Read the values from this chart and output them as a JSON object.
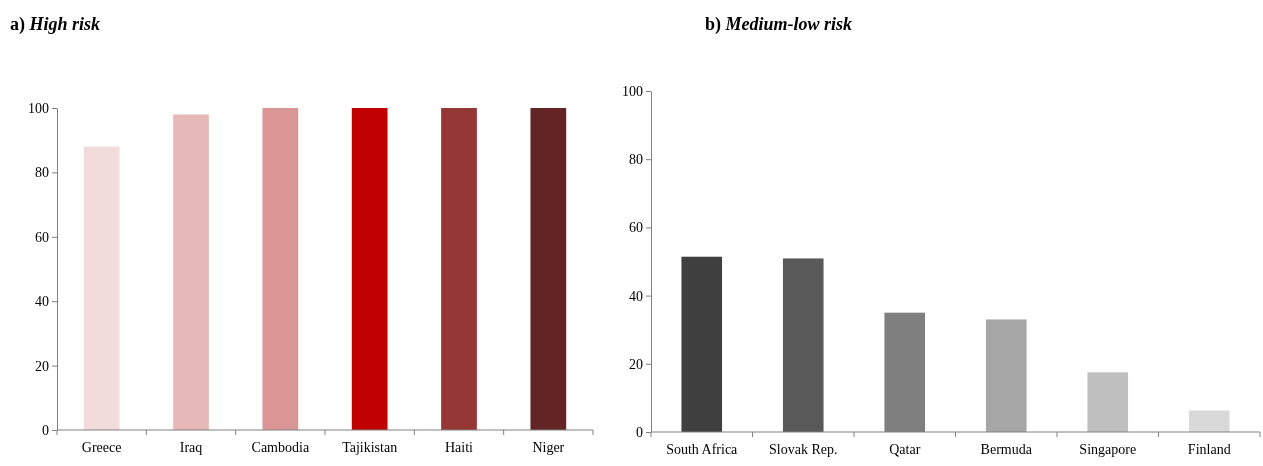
{
  "chart_data": [
    {
      "type": "bar",
      "title": "a) High risk",
      "categories": [
        "Greece",
        "Iraq",
        "Cambodia",
        "Tajikistan",
        "Haiti",
        "Niger"
      ],
      "values": [
        88,
        98,
        100,
        100,
        100,
        100
      ],
      "colors": [
        "#f2dcdb",
        "#e6b9b8",
        "#d99694",
        "#c00000",
        "#953735",
        "#632523"
      ],
      "ylim": [
        0,
        100
      ],
      "yticks": [
        0,
        20,
        40,
        60,
        80,
        100
      ]
    },
    {
      "type": "bar",
      "title": "b) Medium-low risk",
      "categories": [
        "South Africa",
        "Slovak Rep.",
        "Qatar",
        "Bermuda",
        "Singapore",
        "Finland"
      ],
      "values": [
        51.4,
        50.9,
        35,
        33,
        17.5,
        6.3
      ],
      "colors": [
        "#404040",
        "#595959",
        "#7f7f7f",
        "#a6a6a6",
        "#bfbfbf",
        "#d9d9d9"
      ],
      "ylim": [
        0,
        100
      ],
      "yticks": [
        0,
        20,
        40,
        60,
        80,
        100
      ]
    }
  ]
}
